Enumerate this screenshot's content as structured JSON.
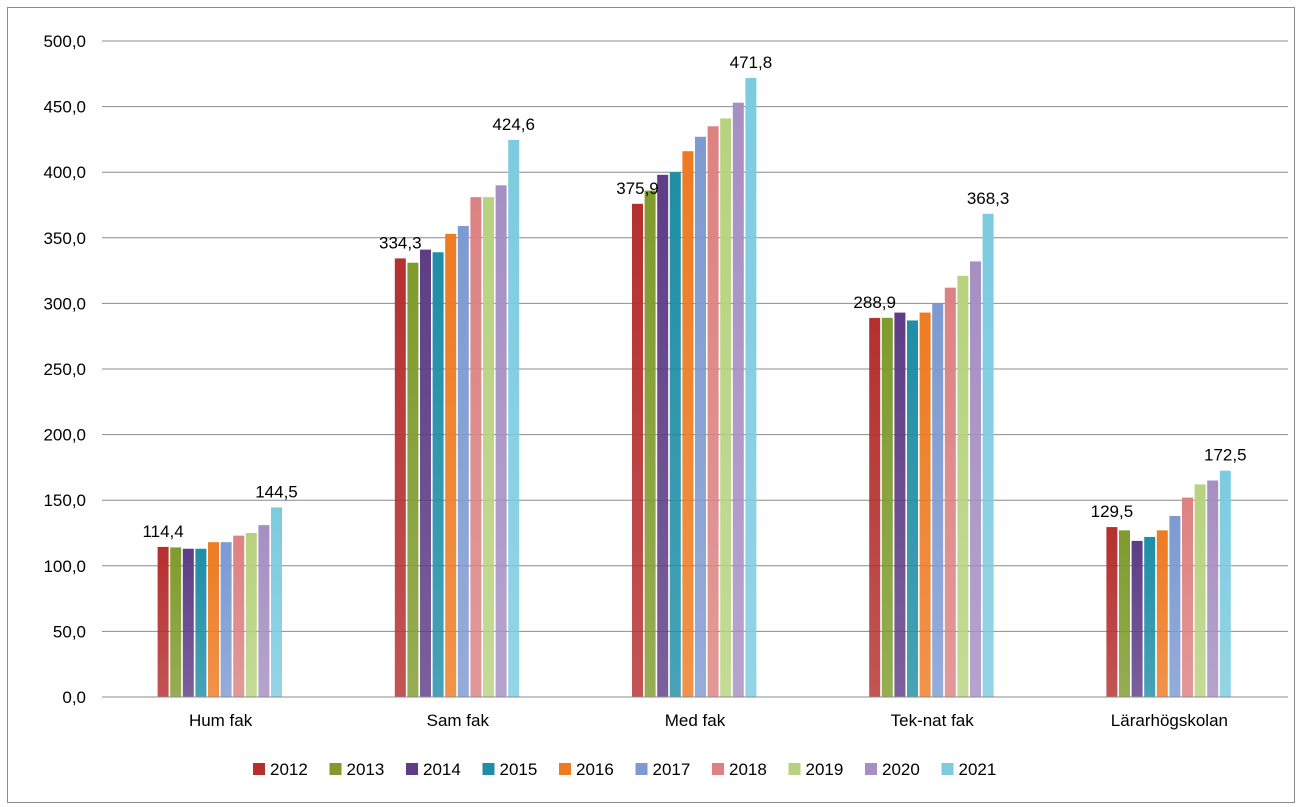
{
  "chart_data": {
    "type": "bar",
    "title": "",
    "xlabel": "",
    "ylabel": "",
    "ylim": [
      0,
      500
    ],
    "y_tick_step": 50,
    "y_tick_labels": [
      "0,0",
      "50,0",
      "100,0",
      "150,0",
      "200,0",
      "250,0",
      "300,0",
      "350,0",
      "400,0",
      "450,0",
      "500,0"
    ],
    "grid": true,
    "legend_position": "bottom",
    "categories": [
      "Hum fak",
      "Sam fak",
      "Med fak",
      "Tek-nat fak",
      "Lärarhögskolan"
    ],
    "series": [
      {
        "name": "2012",
        "color": "#b52f2f",
        "values": [
          114.4,
          334.3,
          375.9,
          288.9,
          129.5
        ]
      },
      {
        "name": "2013",
        "color": "#7f9b2e",
        "values": [
          114.0,
          331.0,
          386.0,
          289.0,
          127.0
        ]
      },
      {
        "name": "2014",
        "color": "#5e3d86",
        "values": [
          113.0,
          341.0,
          398.0,
          293.0,
          119.0
        ]
      },
      {
        "name": "2015",
        "color": "#1f8ea6",
        "values": [
          113.0,
          339.0,
          400.0,
          287.0,
          122.0
        ]
      },
      {
        "name": "2016",
        "color": "#ee7b22",
        "values": [
          118.0,
          353.0,
          416.0,
          293.0,
          127.0
        ]
      },
      {
        "name": "2017",
        "color": "#7d9ad2",
        "values": [
          118.0,
          359.0,
          427.0,
          300.0,
          138.0
        ]
      },
      {
        "name": "2018",
        "color": "#dd8282",
        "values": [
          123.0,
          381.0,
          435.0,
          312.0,
          152.0
        ]
      },
      {
        "name": "2019",
        "color": "#b7d27f",
        "values": [
          125.0,
          381.0,
          441.0,
          321.0,
          162.0
        ]
      },
      {
        "name": "2020",
        "color": "#a68fc2",
        "values": [
          131.0,
          390.0,
          453.0,
          332.0,
          165.0
        ]
      },
      {
        "name": "2021",
        "color": "#7ccbe0",
        "values": [
          144.5,
          424.6,
          471.8,
          368.3,
          172.5
        ]
      }
    ],
    "data_labels": [
      {
        "category": "Hum fak",
        "series": "2012",
        "text": "114,4"
      },
      {
        "category": "Hum fak",
        "series": "2021",
        "text": "144,5"
      },
      {
        "category": "Sam fak",
        "series": "2012",
        "text": "334,3"
      },
      {
        "category": "Sam fak",
        "series": "2021",
        "text": "424,6"
      },
      {
        "category": "Med fak",
        "series": "2012",
        "text": "375,9"
      },
      {
        "category": "Med fak",
        "series": "2021",
        "text": "471,8"
      },
      {
        "category": "Tek-nat fak",
        "series": "2012",
        "text": "288,9"
      },
      {
        "category": "Tek-nat fak",
        "series": "2021",
        "text": "368,3"
      },
      {
        "category": "Lärarhögskolan",
        "series": "2012",
        "text": "129,5"
      },
      {
        "category": "Lärarhögskolan",
        "series": "2021",
        "text": "172,5"
      }
    ]
  }
}
